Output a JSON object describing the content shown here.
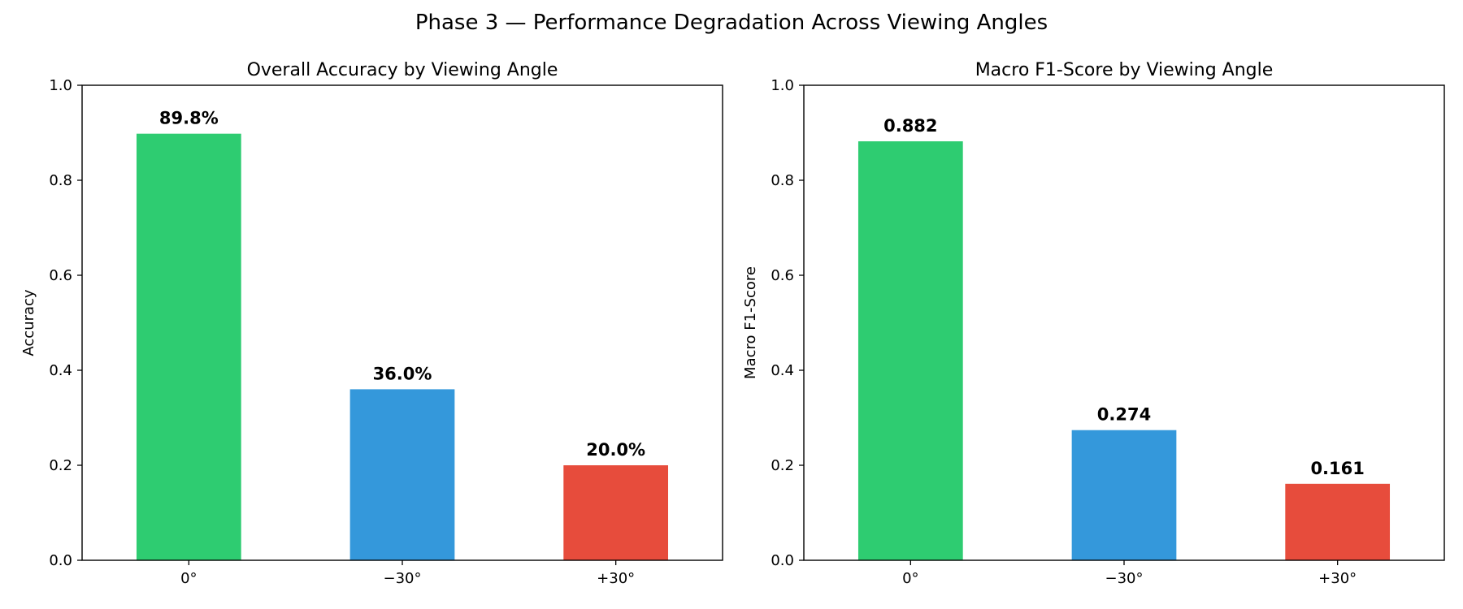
{
  "suptitle": "Phase 3 — Performance Degradation Across Viewing Angles",
  "chart_data": [
    {
      "type": "bar",
      "title": "Overall Accuracy by Viewing Angle",
      "xlabel": "",
      "ylabel": "Accuracy",
      "ylim": [
        0,
        1.0
      ],
      "yticks": [
        "0.0",
        "0.2",
        "0.4",
        "0.6",
        "0.8",
        "1.0"
      ],
      "categories": [
        "0°",
        "−30°",
        "+30°"
      ],
      "values": [
        0.898,
        0.36,
        0.2
      ],
      "labels": [
        "89.8%",
        "36.0%",
        "20.0%"
      ],
      "colors": [
        "#2ecc71",
        "#3498db",
        "#e74c3c"
      ],
      "grid": false,
      "legend": "none"
    },
    {
      "type": "bar",
      "title": "Macro F1-Score by Viewing Angle",
      "xlabel": "",
      "ylabel": "Macro F1-Score",
      "ylim": [
        0,
        1.0
      ],
      "yticks": [
        "0.0",
        "0.2",
        "0.4",
        "0.6",
        "0.8",
        "1.0"
      ],
      "categories": [
        "0°",
        "−30°",
        "+30°"
      ],
      "values": [
        0.882,
        0.274,
        0.161
      ],
      "labels": [
        "0.882",
        "0.274",
        "0.161"
      ],
      "colors": [
        "#2ecc71",
        "#3498db",
        "#e74c3c"
      ],
      "grid": false,
      "legend": "none"
    }
  ]
}
